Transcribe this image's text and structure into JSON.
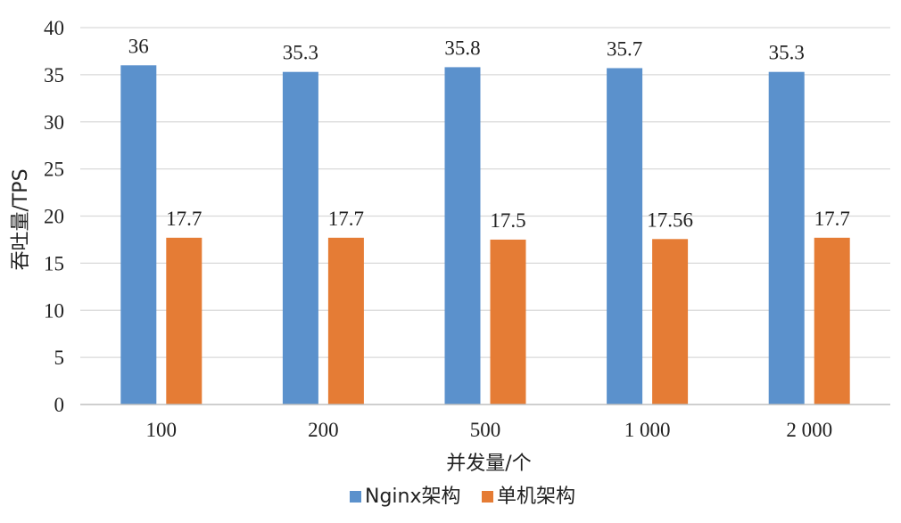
{
  "chart_data": {
    "type": "bar",
    "categories": [
      "100",
      "200",
      "500",
      "1 000",
      "2 000"
    ],
    "series": [
      {
        "name": "Nginx架构",
        "color": "#5b91cc",
        "values": [
          36,
          35.3,
          35.8,
          35.7,
          35.3
        ],
        "labels": [
          "36",
          "35.3",
          "35.8",
          "35.7",
          "35.3"
        ]
      },
      {
        "name": "单机架构",
        "color": "#e57c35",
        "values": [
          17.7,
          17.7,
          17.5,
          17.56,
          17.7
        ],
        "labels": [
          "17.7",
          "17.7",
          "17.5",
          "17.56",
          "17.7"
        ]
      }
    ],
    "xlabel": "并发量/个",
    "ylabel": "吞吐量/TPS",
    "ylim": [
      0,
      40
    ],
    "yticks": [
      "0",
      "5",
      "10",
      "15",
      "20",
      "25",
      "30",
      "35",
      "40"
    ],
    "grid": true,
    "legend_position": "bottom"
  }
}
